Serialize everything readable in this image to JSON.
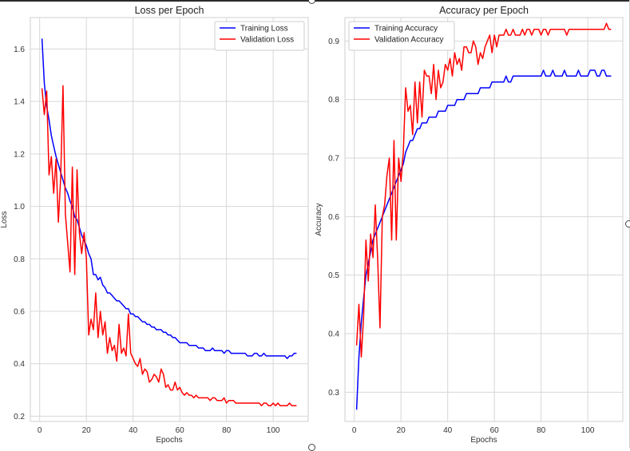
{
  "chart_data": [
    {
      "type": "line",
      "title": "Loss per Epoch",
      "xlabel": "Epochs",
      "ylabel": "Loss",
      "xlim": [
        -4,
        115
      ],
      "ylim": [
        0.18,
        1.72
      ],
      "xticks": [
        0,
        20,
        40,
        60,
        80,
        100
      ],
      "yticks": [
        0.2,
        0.4,
        0.6,
        0.8,
        1.0,
        1.2,
        1.4,
        1.6
      ],
      "grid": true,
      "legend_position": "top-right",
      "series": [
        {
          "name": "Training Loss",
          "color": "#0000ff",
          "x": [
            1,
            2,
            3,
            4,
            5,
            6,
            7,
            8,
            9,
            10,
            11,
            12,
            13,
            14,
            15,
            16,
            17,
            18,
            19,
            20,
            21,
            22,
            23,
            24,
            25,
            26,
            27,
            28,
            29,
            30,
            31,
            32,
            33,
            34,
            35,
            36,
            37,
            38,
            39,
            40,
            41,
            42,
            43,
            44,
            45,
            46,
            47,
            48,
            49,
            50,
            51,
            52,
            53,
            54,
            55,
            56,
            57,
            58,
            59,
            60,
            61,
            62,
            63,
            64,
            65,
            66,
            67,
            68,
            69,
            70,
            71,
            72,
            73,
            74,
            75,
            76,
            77,
            78,
            79,
            80,
            81,
            82,
            83,
            84,
            85,
            86,
            87,
            88,
            89,
            90,
            91,
            92,
            93,
            94,
            95,
            96,
            97,
            98,
            99,
            100,
            101,
            102,
            103,
            104,
            105,
            106,
            107,
            108,
            109,
            110
          ],
          "values": [
            1.64,
            1.47,
            1.38,
            1.33,
            1.27,
            1.23,
            1.19,
            1.16,
            1.13,
            1.1,
            1.07,
            1.05,
            1.02,
            1.0,
            0.96,
            0.95,
            0.92,
            0.89,
            0.87,
            0.85,
            0.82,
            0.8,
            0.74,
            0.74,
            0.72,
            0.73,
            0.7,
            0.69,
            0.67,
            0.67,
            0.66,
            0.65,
            0.64,
            0.64,
            0.63,
            0.62,
            0.61,
            0.61,
            0.59,
            0.59,
            0.58,
            0.58,
            0.57,
            0.56,
            0.56,
            0.55,
            0.55,
            0.54,
            0.54,
            0.53,
            0.53,
            0.53,
            0.52,
            0.52,
            0.51,
            0.51,
            0.5,
            0.5,
            0.49,
            0.48,
            0.48,
            0.48,
            0.48,
            0.47,
            0.47,
            0.47,
            0.47,
            0.46,
            0.46,
            0.46,
            0.45,
            0.45,
            0.45,
            0.46,
            0.45,
            0.45,
            0.45,
            0.45,
            0.44,
            0.45,
            0.45,
            0.44,
            0.44,
            0.44,
            0.44,
            0.44,
            0.44,
            0.44,
            0.43,
            0.43,
            0.43,
            0.44,
            0.44,
            0.43,
            0.43,
            0.44,
            0.43,
            0.43,
            0.43,
            0.43,
            0.43,
            0.43,
            0.43,
            0.43,
            0.43,
            0.42,
            0.43,
            0.43,
            0.44,
            0.44
          ]
        },
        {
          "name": "Validation Loss",
          "color": "#ff0000",
          "x": [
            1,
            2,
            3,
            4,
            5,
            6,
            7,
            8,
            9,
            10,
            11,
            12,
            13,
            14,
            15,
            16,
            17,
            18,
            19,
            20,
            21,
            22,
            23,
            24,
            25,
            26,
            27,
            28,
            29,
            30,
            31,
            32,
            33,
            34,
            35,
            36,
            37,
            38,
            39,
            40,
            41,
            42,
            43,
            44,
            45,
            46,
            47,
            48,
            49,
            50,
            51,
            52,
            53,
            54,
            55,
            56,
            57,
            58,
            59,
            60,
            61,
            62,
            63,
            64,
            65,
            66,
            67,
            68,
            69,
            70,
            71,
            72,
            73,
            74,
            75,
            76,
            77,
            78,
            79,
            80,
            81,
            82,
            83,
            84,
            85,
            86,
            87,
            88,
            89,
            90,
            91,
            92,
            93,
            94,
            95,
            96,
            97,
            98,
            99,
            100,
            101,
            102,
            103,
            104,
            105,
            106,
            107,
            108,
            109,
            110
          ],
          "values": [
            1.45,
            1.35,
            1.44,
            1.12,
            1.19,
            1.05,
            1.18,
            0.94,
            1.11,
            1.46,
            0.97,
            0.86,
            0.75,
            1.15,
            0.74,
            1.14,
            0.9,
            0.82,
            0.9,
            0.8,
            0.51,
            0.57,
            0.53,
            0.67,
            0.5,
            0.6,
            0.51,
            0.56,
            0.44,
            0.5,
            0.45,
            0.47,
            0.41,
            0.55,
            0.44,
            0.46,
            0.43,
            0.59,
            0.44,
            0.42,
            0.4,
            0.39,
            0.42,
            0.36,
            0.38,
            0.37,
            0.33,
            0.34,
            0.36,
            0.35,
            0.33,
            0.38,
            0.36,
            0.31,
            0.32,
            0.3,
            0.3,
            0.33,
            0.3,
            0.31,
            0.29,
            0.28,
            0.29,
            0.28,
            0.28,
            0.27,
            0.28,
            0.27,
            0.27,
            0.27,
            0.27,
            0.27,
            0.26,
            0.27,
            0.27,
            0.26,
            0.26,
            0.26,
            0.27,
            0.25,
            0.26,
            0.26,
            0.26,
            0.25,
            0.25,
            0.25,
            0.25,
            0.25,
            0.25,
            0.25,
            0.25,
            0.25,
            0.25,
            0.25,
            0.24,
            0.25,
            0.25,
            0.24,
            0.24,
            0.25,
            0.24,
            0.25,
            0.24,
            0.24,
            0.24,
            0.24,
            0.25,
            0.24,
            0.24,
            0.24
          ]
        }
      ]
    },
    {
      "type": "line",
      "title": "Accuracy per Epoch",
      "xlabel": "Epochs",
      "ylabel": "Accuracy",
      "xlim": [
        -4,
        115
      ],
      "ylim": [
        0.25,
        0.94
      ],
      "xticks": [
        0,
        20,
        40,
        60,
        80,
        100
      ],
      "yticks": [
        0.3,
        0.4,
        0.5,
        0.6,
        0.7,
        0.8,
        0.9
      ],
      "grid": true,
      "legend_position": "top-left",
      "series": [
        {
          "name": "Training Accuracy",
          "color": "#0000ff",
          "x": [
            1,
            2,
            3,
            4,
            5,
            6,
            7,
            8,
            9,
            10,
            11,
            12,
            13,
            14,
            15,
            16,
            17,
            18,
            19,
            20,
            21,
            22,
            23,
            24,
            25,
            26,
            27,
            28,
            29,
            30,
            31,
            32,
            33,
            34,
            35,
            36,
            37,
            38,
            39,
            40,
            41,
            42,
            43,
            44,
            45,
            46,
            47,
            48,
            49,
            50,
            51,
            52,
            53,
            54,
            55,
            56,
            57,
            58,
            59,
            60,
            61,
            62,
            63,
            64,
            65,
            66,
            67,
            68,
            69,
            70,
            71,
            72,
            73,
            74,
            75,
            76,
            77,
            78,
            79,
            80,
            81,
            82,
            83,
            84,
            85,
            86,
            87,
            88,
            89,
            90,
            91,
            92,
            93,
            94,
            95,
            96,
            97,
            98,
            99,
            100,
            101,
            102,
            103,
            104,
            105,
            106,
            107,
            108,
            109,
            110
          ],
          "values": [
            0.27,
            0.36,
            0.42,
            0.46,
            0.5,
            0.52,
            0.54,
            0.56,
            0.57,
            0.58,
            0.59,
            0.6,
            0.61,
            0.62,
            0.63,
            0.64,
            0.65,
            0.66,
            0.67,
            0.68,
            0.69,
            0.71,
            0.72,
            0.73,
            0.73,
            0.74,
            0.75,
            0.75,
            0.76,
            0.76,
            0.76,
            0.77,
            0.77,
            0.77,
            0.77,
            0.78,
            0.78,
            0.78,
            0.78,
            0.79,
            0.79,
            0.79,
            0.79,
            0.8,
            0.8,
            0.8,
            0.8,
            0.81,
            0.81,
            0.81,
            0.81,
            0.81,
            0.81,
            0.82,
            0.82,
            0.82,
            0.82,
            0.82,
            0.83,
            0.83,
            0.83,
            0.83,
            0.83,
            0.83,
            0.84,
            0.83,
            0.83,
            0.84,
            0.84,
            0.84,
            0.84,
            0.84,
            0.84,
            0.84,
            0.84,
            0.84,
            0.84,
            0.84,
            0.84,
            0.84,
            0.85,
            0.84,
            0.84,
            0.84,
            0.85,
            0.84,
            0.84,
            0.84,
            0.84,
            0.85,
            0.84,
            0.84,
            0.84,
            0.84,
            0.84,
            0.85,
            0.84,
            0.84,
            0.84,
            0.84,
            0.85,
            0.85,
            0.85,
            0.84,
            0.84,
            0.85,
            0.85,
            0.84,
            0.84,
            0.84
          ]
        },
        {
          "name": "Validation Accuracy",
          "color": "#ff0000",
          "x": [
            1,
            2,
            3,
            4,
            5,
            6,
            7,
            8,
            9,
            10,
            11,
            12,
            13,
            14,
            15,
            16,
            17,
            18,
            19,
            20,
            21,
            22,
            23,
            24,
            25,
            26,
            27,
            28,
            29,
            30,
            31,
            32,
            33,
            34,
            35,
            36,
            37,
            38,
            39,
            40,
            41,
            42,
            43,
            44,
            45,
            46,
            47,
            48,
            49,
            50,
            51,
            52,
            53,
            54,
            55,
            56,
            57,
            58,
            59,
            60,
            61,
            62,
            63,
            64,
            65,
            66,
            67,
            68,
            69,
            70,
            71,
            72,
            73,
            74,
            75,
            76,
            77,
            78,
            79,
            80,
            81,
            82,
            83,
            84,
            85,
            86,
            87,
            88,
            89,
            90,
            91,
            92,
            93,
            94,
            95,
            96,
            97,
            98,
            99,
            100,
            101,
            102,
            103,
            104,
            105,
            106,
            107,
            108,
            109,
            110
          ],
          "values": [
            0.38,
            0.45,
            0.36,
            0.43,
            0.56,
            0.49,
            0.57,
            0.53,
            0.62,
            0.53,
            0.41,
            0.6,
            0.62,
            0.67,
            0.7,
            0.56,
            0.73,
            0.56,
            0.7,
            0.66,
            0.71,
            0.82,
            0.78,
            0.79,
            0.74,
            0.83,
            0.76,
            0.83,
            0.77,
            0.85,
            0.84,
            0.84,
            0.81,
            0.86,
            0.8,
            0.85,
            0.82,
            0.83,
            0.86,
            0.85,
            0.87,
            0.84,
            0.88,
            0.86,
            0.87,
            0.85,
            0.89,
            0.89,
            0.88,
            0.88,
            0.9,
            0.89,
            0.86,
            0.88,
            0.87,
            0.89,
            0.9,
            0.91,
            0.88,
            0.91,
            0.89,
            0.91,
            0.91,
            0.91,
            0.92,
            0.91,
            0.91,
            0.92,
            0.91,
            0.91,
            0.91,
            0.92,
            0.91,
            0.92,
            0.92,
            0.91,
            0.92,
            0.92,
            0.92,
            0.91,
            0.92,
            0.92,
            0.91,
            0.92,
            0.92,
            0.92,
            0.92,
            0.92,
            0.92,
            0.92,
            0.91,
            0.92,
            0.92,
            0.92,
            0.92,
            0.92,
            0.92,
            0.92,
            0.92,
            0.92,
            0.92,
            0.92,
            0.92,
            0.92,
            0.92,
            0.92,
            0.92,
            0.93,
            0.92,
            0.92
          ]
        }
      ]
    }
  ]
}
